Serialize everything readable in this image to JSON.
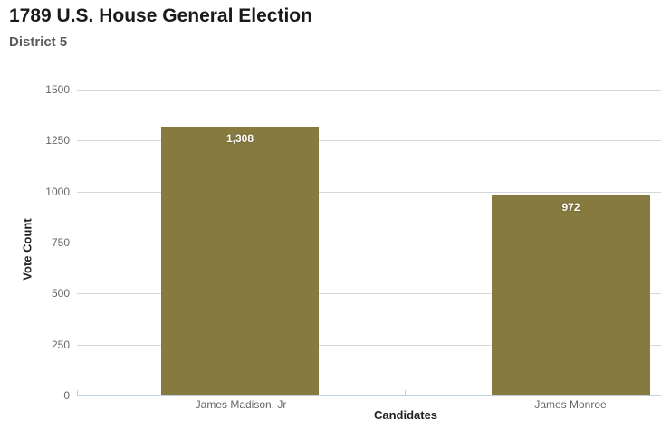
{
  "header": {
    "title": "1789 U.S. House General Election",
    "subtitle": "District 5"
  },
  "colors": {
    "bar": "#867A3E",
    "grid": "#D8D8D8",
    "axis_line": "#C0D0E0",
    "label_gray": "#666666",
    "title_black": "#1a1a1a"
  },
  "chart_data": {
    "type": "bar",
    "title": "1789 U.S. House General Election",
    "subtitle": "District 5",
    "categories": [
      "James Madison, Jr",
      "James Monroe"
    ],
    "values": [
      1308,
      972
    ],
    "value_labels": [
      "1,308",
      "972"
    ],
    "xlabel": "Candidates",
    "ylabel": "Vote Count",
    "ylim": [
      0,
      1500
    ],
    "yticks": [
      0,
      250,
      500,
      750,
      1000,
      1250,
      1500
    ],
    "ytick_labels": [
      "1500",
      "1250",
      "1000",
      "750",
      "500",
      "250",
      "0"
    ],
    "grid": true,
    "legend": false,
    "bar_color": "#867A3E",
    "data_label_color": "#ffffff"
  }
}
